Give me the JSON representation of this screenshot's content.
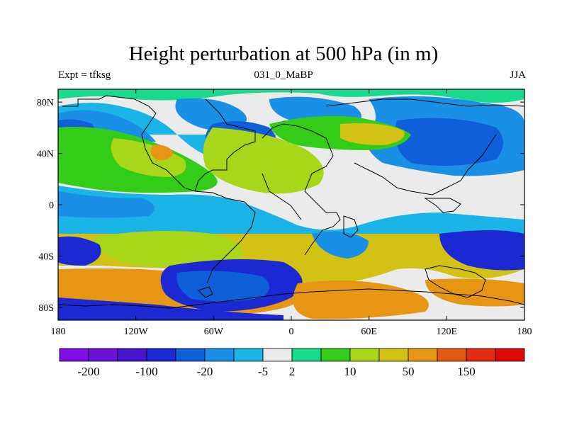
{
  "figure": {
    "title": "Height perturbation at 500 hPa (in m)",
    "left_string": "Expt = tfksg",
    "center_string": "031_0_MaBP",
    "right_string": "JJA"
  },
  "map": {
    "lat_ticks": [
      "80N",
      "40N",
      "0",
      "40S",
      "80S"
    ],
    "lat_values": [
      80,
      40,
      0,
      -40,
      -80
    ],
    "lon_ticks": [
      "180",
      "120W",
      "60W",
      "0",
      "60E",
      "120E",
      "180"
    ],
    "lon_values": [
      -180,
      -120,
      -60,
      0,
      60,
      120,
      180
    ],
    "lat_range": [
      -90,
      90
    ],
    "lon_range": [
      -180,
      180
    ]
  },
  "colorbar": {
    "colors": [
      "#7d0fe6",
      "#6a10d8",
      "#4414ce",
      "#1c28d2",
      "#0f5fd9",
      "#1a8fe6",
      "#1ab4e6",
      "#ebebeb",
      "#19d98c",
      "#33cc19",
      "#a8d619",
      "#d2c214",
      "#e69612",
      "#e45a13",
      "#e22d10",
      "#de0a0a"
    ],
    "labels": [
      "-200",
      "-100",
      "-20",
      "-5",
      "2",
      "10",
      "50",
      "150"
    ],
    "label_after_box": [
      1,
      3,
      5,
      7,
      8,
      10,
      12,
      14
    ]
  }
}
